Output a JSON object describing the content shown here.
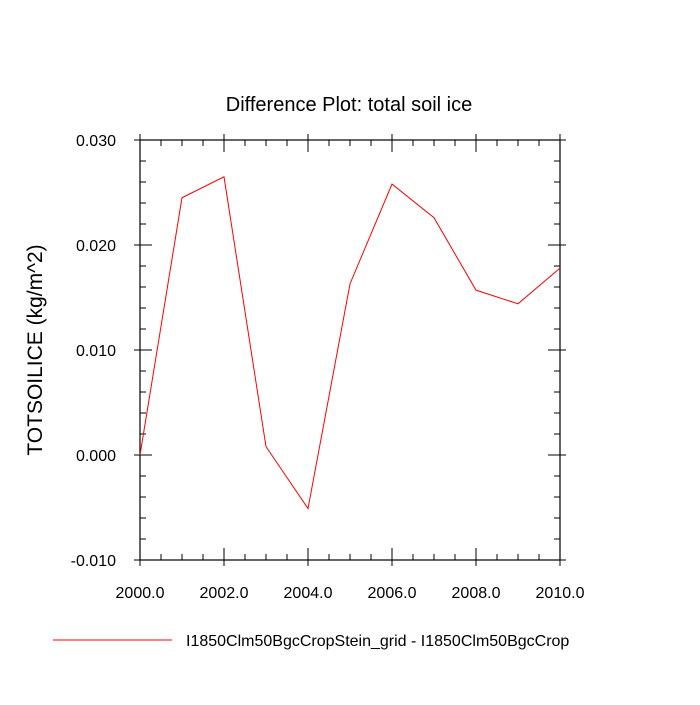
{
  "chart_data": {
    "type": "line",
    "title": "Difference Plot: total soil ice",
    "xlabel": "",
    "ylabel": "TOTSOILICE  (kg/m^2)",
    "xlim": [
      2000.0,
      2010.0
    ],
    "ylim": [
      -0.01,
      0.03
    ],
    "x_ticks": [
      "2000.0",
      "2002.0",
      "2004.0",
      "2006.0",
      "2008.0",
      "2010.0"
    ],
    "y_ticks": [
      "-0.010",
      "0.000",
      "0.010",
      "0.020",
      "0.030"
    ],
    "grid": false,
    "legend_position": "bottom",
    "series": [
      {
        "name": "I1850Clm50BgcCropStein_grid - I1850Clm50BgcCrop",
        "color": "#ff0000",
        "x": [
          2000,
          2001,
          2002,
          2003,
          2004,
          2005,
          2006,
          2007,
          2008,
          2009,
          2010
        ],
        "y": [
          0.0,
          0.0245,
          0.0265,
          0.0008,
          -0.0051,
          0.0163,
          0.0258,
          0.0226,
          0.0157,
          0.0144,
          0.0178
        ]
      }
    ]
  }
}
